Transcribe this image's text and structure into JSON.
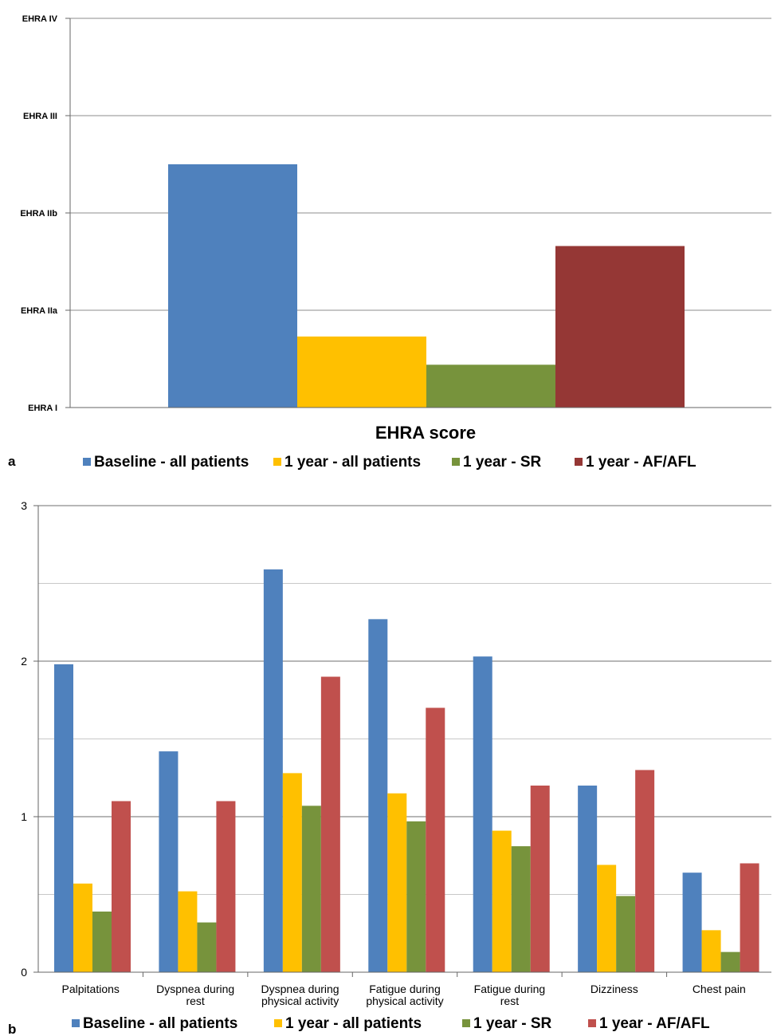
{
  "chart_data": [
    {
      "type": "bar",
      "panel_label": "a",
      "xlabel": "EHRA score",
      "y_tick_labels": [
        "EHRA I",
        "EHRA IIa",
        "EHRA IIb",
        "EHRA III",
        "EHRA IV"
      ],
      "ylim": [
        1,
        5
      ],
      "grid": true,
      "legend_position": "bottom",
      "series": [
        {
          "name": "Baseline - all patients",
          "values": [
            3.5
          ],
          "color": "#4f81bd"
        },
        {
          "name": "1 year - all patients",
          "values": [
            1.73
          ],
          "color": "#ffc000"
        },
        {
          "name": "1 year - SR",
          "values": [
            1.44
          ],
          "color": "#77933c"
        },
        {
          "name": "1 year - AF/AFL",
          "values": [
            2.66
          ],
          "color": "#953735"
        }
      ]
    },
    {
      "type": "bar",
      "panel_label": "b",
      "categories": [
        [
          "Palpitations"
        ],
        [
          "Dyspnea during",
          "rest"
        ],
        [
          "Dyspnea during",
          "physical activity"
        ],
        [
          "Fatigue during",
          "physical activity"
        ],
        [
          "Fatigue during",
          "rest"
        ],
        [
          "Dizziness"
        ],
        [
          "Chest pain"
        ]
      ],
      "y_ticks": [
        "0",
        "1",
        "2",
        "3"
      ],
      "ylim": [
        0,
        3
      ],
      "grid": true,
      "legend_position": "bottom",
      "series": [
        {
          "name": "Baseline - all patients",
          "values": [
            1.98,
            1.42,
            2.59,
            2.27,
            2.03,
            1.2,
            0.64
          ],
          "color": "#4f81bd"
        },
        {
          "name": "1 year - all patients",
          "values": [
            0.57,
            0.52,
            1.28,
            1.15,
            0.91,
            0.69,
            0.27
          ],
          "color": "#ffc000"
        },
        {
          "name": "1 year - SR",
          "values": [
            0.39,
            0.32,
            1.07,
            0.97,
            0.81,
            0.49,
            0.13
          ],
          "color": "#77933c"
        },
        {
          "name": "1 year - AF/AFL",
          "values": [
            1.1,
            1.1,
            1.9,
            1.7,
            1.2,
            1.3,
            0.7
          ],
          "color": "#c0504d"
        }
      ]
    }
  ]
}
